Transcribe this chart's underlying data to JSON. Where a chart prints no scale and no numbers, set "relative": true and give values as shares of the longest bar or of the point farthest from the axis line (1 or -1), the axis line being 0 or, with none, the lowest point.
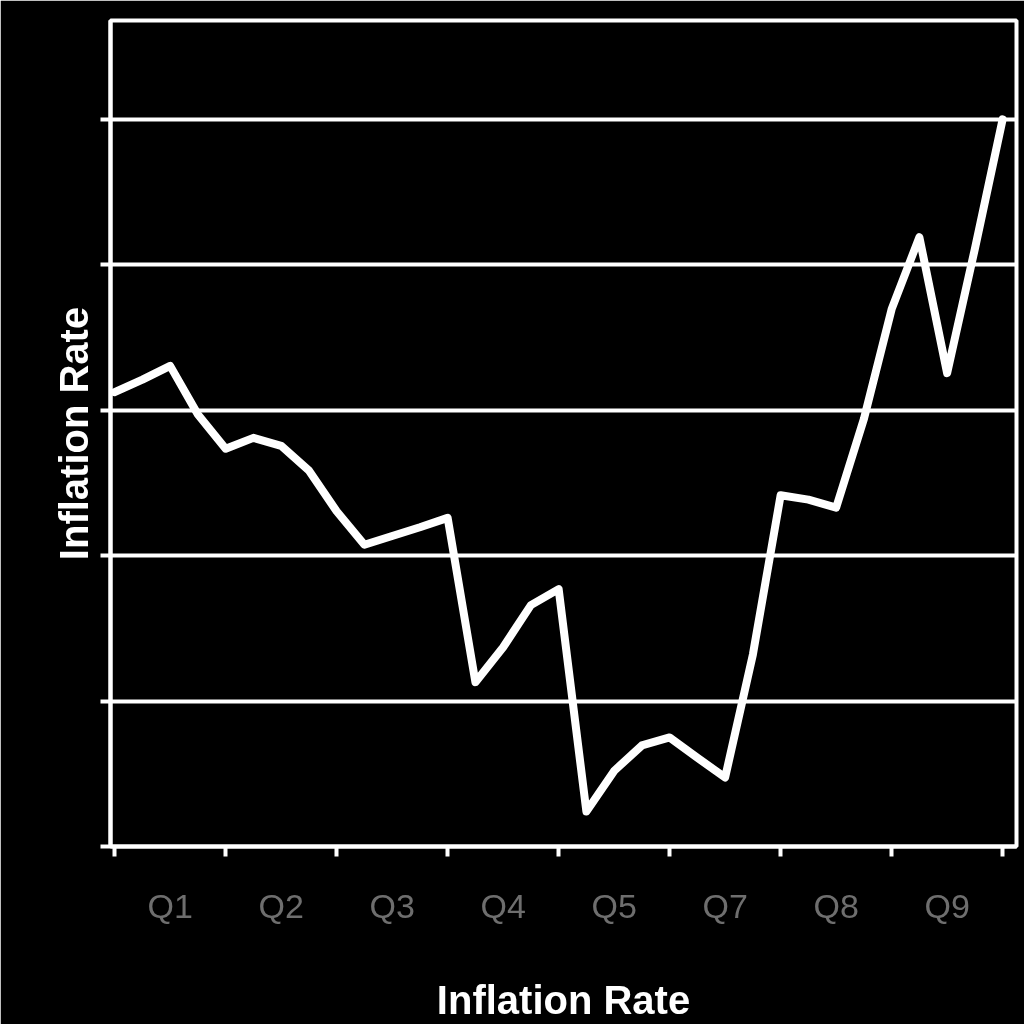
{
  "chart_data": {
    "type": "line",
    "xlabel": "Inflation Rate",
    "ylabel": "Inflation Rate",
    "relative": true,
    "grid": "y",
    "color": "#ffffff",
    "categories": [
      null,
      null,
      "Q1",
      null,
      null,
      null,
      "Q2",
      null,
      null,
      null,
      "Q3",
      null,
      null,
      null,
      "Q4",
      null,
      null,
      null,
      "Q5",
      null,
      null,
      null,
      "Q7",
      null,
      null,
      null,
      "Q8",
      null,
      null,
      null,
      "Q9",
      null,
      null
    ],
    "values": [
      0.625,
      0.642,
      0.661,
      0.594,
      0.547,
      0.562,
      0.551,
      0.517,
      0.461,
      0.415,
      0.427,
      0.439,
      0.452,
      0.226,
      0.274,
      0.332,
      0.354,
      0.048,
      0.104,
      0.139,
      0.15,
      0.122,
      0.095,
      0.264,
      0.483,
      0.477,
      0.466,
      0.588,
      0.739,
      0.838,
      0.651,
      0.822,
      1.0
    ]
  }
}
